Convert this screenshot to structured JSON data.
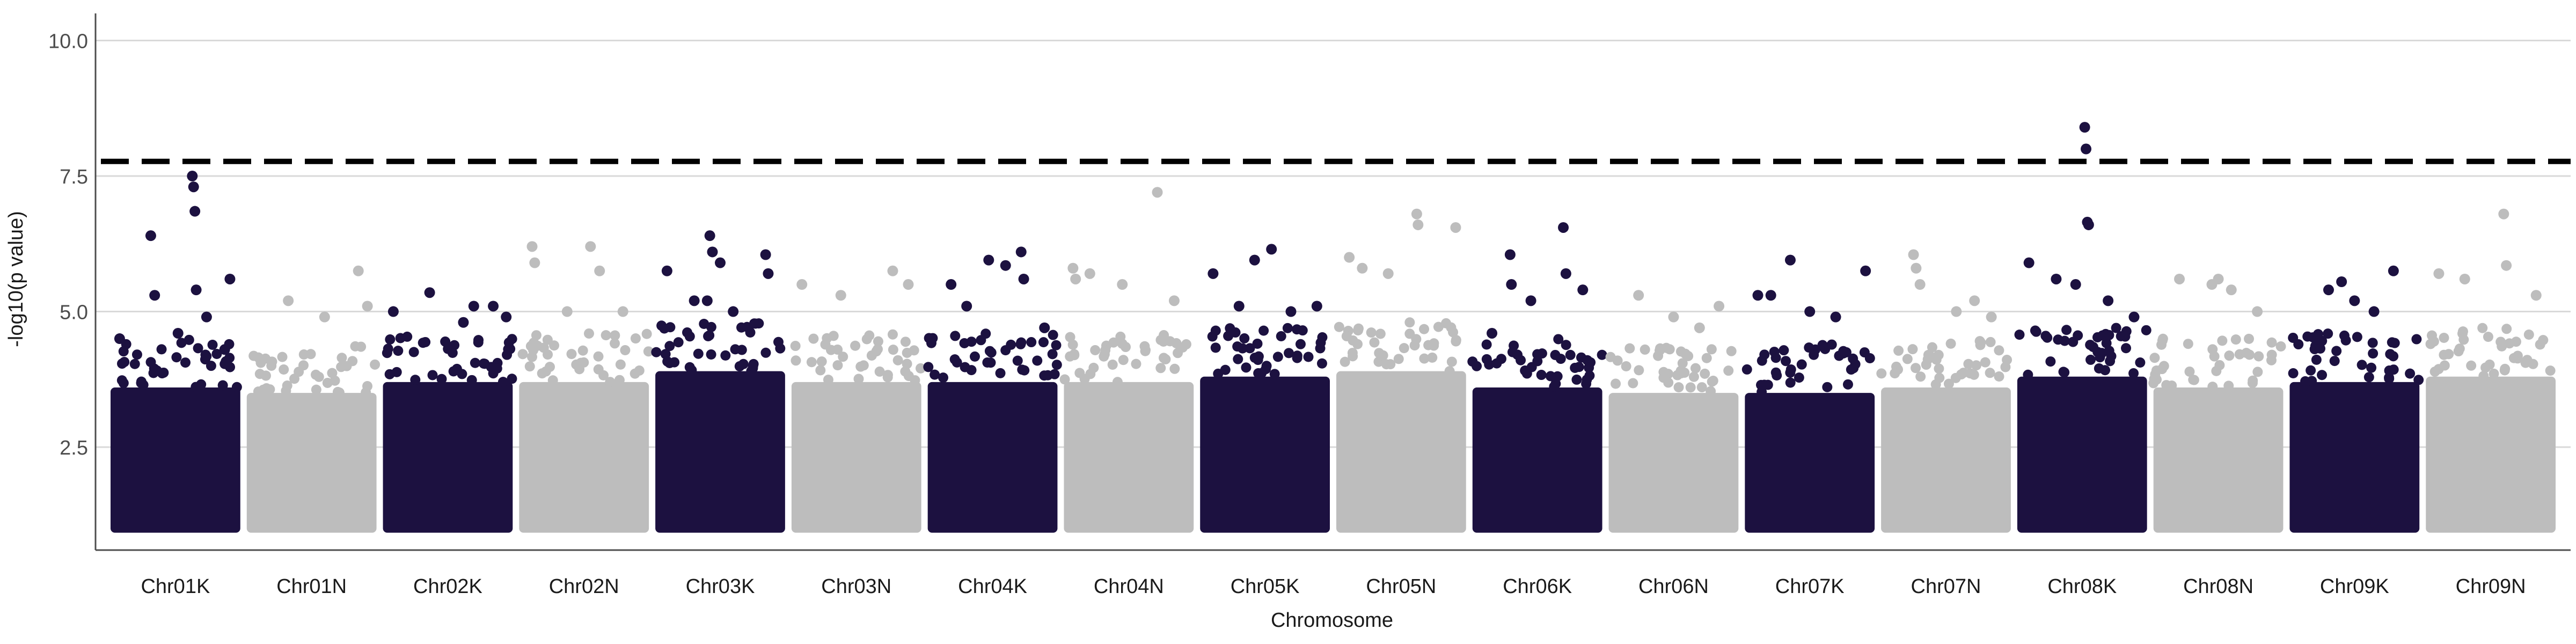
{
  "chart_data": {
    "type": "scatter",
    "subtype": "manhattan",
    "title": "",
    "xlabel": "Chromosome",
    "ylabel": "-log10(p value)",
    "ylim": [
      0.6,
      10.5
    ],
    "yticks": [
      2.5,
      5.0,
      7.5,
      10.0
    ],
    "ytick_labels": [
      "2.5",
      "5.0",
      "7.5",
      "10.0"
    ],
    "grid": "horizontal major",
    "legend": "none",
    "threshold": {
      "value": 7.77,
      "style": "dashed",
      "color": "#000000"
    },
    "colors": {
      "odd": "#1c1140",
      "even": "#bdbdbd",
      "grid": "#d9d9d9",
      "axis": "#4d4d4d"
    },
    "categories": [
      "Chr01K",
      "Chr01N",
      "Chr02K",
      "Chr02N",
      "Chr03K",
      "Chr03N",
      "Chr04K",
      "Chr04N",
      "Chr05K",
      "Chr05N",
      "Chr06K",
      "Chr06N",
      "Chr07K",
      "Chr07N",
      "Chr08K",
      "Chr08N",
      "Chr09K",
      "Chr09N"
    ],
    "series": [
      {
        "chromosome": "Chr01K",
        "color": "#1c1140",
        "band_max": 3.6,
        "top_hits": [
          {
            "x": 0.07,
            "y": 4.5
          },
          {
            "x": 0.31,
            "y": 6.4
          },
          {
            "x": 0.34,
            "y": 5.3
          },
          {
            "x": 0.52,
            "y": 4.6
          },
          {
            "x": 0.63,
            "y": 7.5
          },
          {
            "x": 0.64,
            "y": 7.3
          },
          {
            "x": 0.65,
            "y": 6.85
          },
          {
            "x": 0.66,
            "y": 5.4
          },
          {
            "x": 0.74,
            "y": 4.9
          },
          {
            "x": 0.88,
            "y": 4.3
          },
          {
            "x": 0.92,
            "y": 5.6
          }
        ]
      },
      {
        "chromosome": "Chr01N",
        "color": "#bdbdbd",
        "band_max": 3.5,
        "top_hits": [
          {
            "x": 0.32,
            "y": 5.2
          },
          {
            "x": 0.6,
            "y": 4.9
          },
          {
            "x": 0.86,
            "y": 5.75
          },
          {
            "x": 0.93,
            "y": 5.1
          }
        ]
      },
      {
        "chromosome": "Chr02K",
        "color": "#1c1140",
        "band_max": 3.7,
        "top_hits": [
          {
            "x": 0.08,
            "y": 5.0
          },
          {
            "x": 0.36,
            "y": 5.35
          },
          {
            "x": 0.62,
            "y": 4.8
          },
          {
            "x": 0.7,
            "y": 5.1
          },
          {
            "x": 0.85,
            "y": 5.1
          },
          {
            "x": 0.95,
            "y": 4.9
          }
        ]
      },
      {
        "chromosome": "Chr02N",
        "color": "#bdbdbd",
        "band_max": 3.7,
        "top_hits": [
          {
            "x": 0.1,
            "y": 6.2
          },
          {
            "x": 0.12,
            "y": 5.9
          },
          {
            "x": 0.37,
            "y": 5.0
          },
          {
            "x": 0.55,
            "y": 6.2
          },
          {
            "x": 0.62,
            "y": 5.75
          },
          {
            "x": 0.8,
            "y": 5.0
          }
        ]
      },
      {
        "chromosome": "Chr03K",
        "color": "#1c1140",
        "band_max": 3.9,
        "top_hits": [
          {
            "x": 0.09,
            "y": 5.75
          },
          {
            "x": 0.3,
            "y": 5.2
          },
          {
            "x": 0.4,
            "y": 5.2
          },
          {
            "x": 0.42,
            "y": 6.4
          },
          {
            "x": 0.44,
            "y": 6.1
          },
          {
            "x": 0.5,
            "y": 5.9
          },
          {
            "x": 0.6,
            "y": 5.0
          },
          {
            "x": 0.85,
            "y": 6.05
          },
          {
            "x": 0.87,
            "y": 5.7
          }
        ]
      },
      {
        "chromosome": "Chr03N",
        "color": "#bdbdbd",
        "band_max": 3.7,
        "top_hits": [
          {
            "x": 0.08,
            "y": 5.5
          },
          {
            "x": 0.38,
            "y": 5.3
          },
          {
            "x": 0.78,
            "y": 5.75
          },
          {
            "x": 0.9,
            "y": 5.5
          }
        ]
      },
      {
        "chromosome": "Chr04K",
        "color": "#1c1140",
        "band_max": 3.7,
        "top_hits": [
          {
            "x": 0.18,
            "y": 5.5
          },
          {
            "x": 0.3,
            "y": 5.1
          },
          {
            "x": 0.47,
            "y": 5.95
          },
          {
            "x": 0.6,
            "y": 5.85
          },
          {
            "x": 0.72,
            "y": 6.1
          },
          {
            "x": 0.74,
            "y": 5.6
          },
          {
            "x": 0.9,
            "y": 4.7
          }
        ]
      },
      {
        "chromosome": "Chr04N",
        "color": "#bdbdbd",
        "band_max": 3.7,
        "top_hits": [
          {
            "x": 0.07,
            "y": 5.8
          },
          {
            "x": 0.09,
            "y": 5.6
          },
          {
            "x": 0.2,
            "y": 5.7
          },
          {
            "x": 0.45,
            "y": 5.5
          },
          {
            "x": 0.72,
            "y": 7.2
          },
          {
            "x": 0.85,
            "y": 5.2
          }
        ]
      },
      {
        "chromosome": "Chr05K",
        "color": "#1c1140",
        "band_max": 3.8,
        "top_hits": [
          {
            "x": 0.1,
            "y": 5.7
          },
          {
            "x": 0.3,
            "y": 5.1
          },
          {
            "x": 0.42,
            "y": 5.95
          },
          {
            "x": 0.55,
            "y": 6.15
          },
          {
            "x": 0.7,
            "y": 5.0
          },
          {
            "x": 0.9,
            "y": 5.1
          }
        ]
      },
      {
        "chromosome": "Chr05N",
        "color": "#bdbdbd",
        "band_max": 3.9,
        "top_hits": [
          {
            "x": 0.1,
            "y": 6.0
          },
          {
            "x": 0.2,
            "y": 5.8
          },
          {
            "x": 0.4,
            "y": 5.7
          },
          {
            "x": 0.62,
            "y": 6.8
          },
          {
            "x": 0.63,
            "y": 6.6
          },
          {
            "x": 0.92,
            "y": 6.55
          }
        ]
      },
      {
        "chromosome": "Chr06K",
        "color": "#1c1140",
        "band_max": 3.6,
        "top_hits": [
          {
            "x": 0.15,
            "y": 4.6
          },
          {
            "x": 0.29,
            "y": 6.05
          },
          {
            "x": 0.3,
            "y": 5.5
          },
          {
            "x": 0.45,
            "y": 5.2
          },
          {
            "x": 0.7,
            "y": 6.55
          },
          {
            "x": 0.72,
            "y": 5.7
          },
          {
            "x": 0.85,
            "y": 5.4
          }
        ]
      },
      {
        "chromosome": "Chr06N",
        "color": "#bdbdbd",
        "band_max": 3.5,
        "top_hits": [
          {
            "x": 0.23,
            "y": 5.3
          },
          {
            "x": 0.5,
            "y": 4.9
          },
          {
            "x": 0.7,
            "y": 4.7
          },
          {
            "x": 0.85,
            "y": 5.1
          }
        ]
      },
      {
        "chromosome": "Chr07K",
        "color": "#1c1140",
        "band_max": 3.5,
        "top_hits": [
          {
            "x": 0.1,
            "y": 5.3
          },
          {
            "x": 0.2,
            "y": 5.3
          },
          {
            "x": 0.35,
            "y": 5.95
          },
          {
            "x": 0.5,
            "y": 5.0
          },
          {
            "x": 0.7,
            "y": 4.9
          },
          {
            "x": 0.93,
            "y": 5.75
          }
        ]
      },
      {
        "chromosome": "Chr07N",
        "color": "#bdbdbd",
        "band_max": 3.6,
        "top_hits": [
          {
            "x": 0.25,
            "y": 6.05
          },
          {
            "x": 0.27,
            "y": 5.8
          },
          {
            "x": 0.3,
            "y": 5.5
          },
          {
            "x": 0.58,
            "y": 5.0
          },
          {
            "x": 0.72,
            "y": 5.2
          },
          {
            "x": 0.85,
            "y": 4.9
          }
        ]
      },
      {
        "chromosome": "Chr08K",
        "color": "#1c1140",
        "band_max": 3.8,
        "top_hits": [
          {
            "x": 0.09,
            "y": 5.9
          },
          {
            "x": 0.3,
            "y": 5.6
          },
          {
            "x": 0.45,
            "y": 5.5
          },
          {
            "x": 0.52,
            "y": 8.4
          },
          {
            "x": 0.53,
            "y": 8.0
          },
          {
            "x": 0.54,
            "y": 6.65
          },
          {
            "x": 0.55,
            "y": 6.6
          },
          {
            "x": 0.7,
            "y": 5.2
          },
          {
            "x": 0.9,
            "y": 4.9
          }
        ]
      },
      {
        "chromosome": "Chr08N",
        "color": "#bdbdbd",
        "band_max": 3.6,
        "top_hits": [
          {
            "x": 0.2,
            "y": 5.6
          },
          {
            "x": 0.45,
            "y": 5.5
          },
          {
            "x": 0.5,
            "y": 5.6
          },
          {
            "x": 0.6,
            "y": 5.4
          },
          {
            "x": 0.8,
            "y": 5.0
          }
        ]
      },
      {
        "chromosome": "Chr09K",
        "color": "#1c1140",
        "band_max": 3.7,
        "top_hits": [
          {
            "x": 0.3,
            "y": 5.4
          },
          {
            "x": 0.4,
            "y": 5.55
          },
          {
            "x": 0.5,
            "y": 5.2
          },
          {
            "x": 0.65,
            "y": 5.0
          },
          {
            "x": 0.8,
            "y": 5.75
          }
        ]
      },
      {
        "chromosome": "Chr09N",
        "color": "#bdbdbd",
        "band_max": 3.8,
        "top_hits": [
          {
            "x": 0.1,
            "y": 5.7
          },
          {
            "x": 0.3,
            "y": 5.6
          },
          {
            "x": 0.6,
            "y": 6.8
          },
          {
            "x": 0.62,
            "y": 5.85
          },
          {
            "x": 0.85,
            "y": 5.3
          }
        ]
      }
    ]
  }
}
